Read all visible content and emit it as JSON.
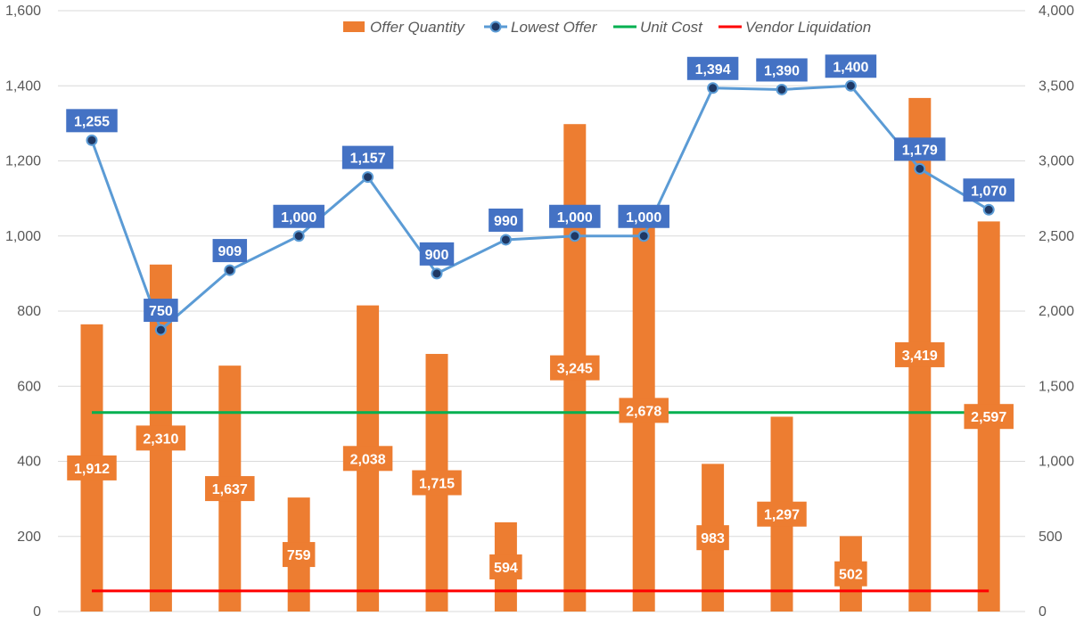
{
  "chart_data": {
    "type": "bar",
    "categories": [
      "",
      "",
      "",
      "",
      "",
      "",
      "",
      "",
      "",
      "",
      "",
      "",
      "",
      ""
    ],
    "title": "",
    "xlabel": "",
    "ylabel": "",
    "ylim": [
      0,
      1600
    ],
    "y2lim": [
      0,
      4000
    ],
    "y_ticks": [
      "0",
      "200",
      "400",
      "600",
      "800",
      "1,000",
      "1,200",
      "1,400",
      "1,600"
    ],
    "y2_ticks": [
      "0",
      "500",
      "1,000",
      "1,500",
      "2,000",
      "2,500",
      "3,000",
      "3,500",
      "4,000"
    ],
    "grid": true,
    "legend_position": "top",
    "series": [
      {
        "name": "Offer Quantity",
        "type": "bar",
        "axis": "right",
        "color": "#ED7D31",
        "values": [
          1912,
          2310,
          1637,
          759,
          2038,
          1715,
          594,
          3245,
          2678,
          983,
          1297,
          502,
          3419,
          2597
        ],
        "labels": [
          "1,912",
          "2,310",
          "1,637",
          "759",
          "2,038",
          "1,715",
          "594",
          "3,245",
          "2,678",
          "983",
          "1,297",
          "502",
          "3,419",
          "2,597"
        ]
      },
      {
        "name": "Lowest Offer",
        "type": "line",
        "axis": "left",
        "color": "#5B9BD5",
        "marker_color": "#1F3864",
        "label_bg": "#4472C4",
        "values": [
          1255,
          750,
          909,
          1000,
          1157,
          900,
          990,
          1000,
          1000,
          1394,
          1390,
          1400,
          1179,
          1070
        ],
        "labels": [
          "1,255",
          "750",
          "909",
          "1,000",
          "1,157",
          "900",
          "990",
          "1,000",
          "1,000",
          "1,394",
          "1,390",
          "1,400",
          "1,179",
          "1,070"
        ]
      },
      {
        "name": "Unit Cost",
        "type": "line",
        "axis": "left",
        "color": "#00B050",
        "values": [
          530,
          530,
          530,
          530,
          530,
          530,
          530,
          530,
          530,
          530,
          530,
          530,
          530,
          530
        ]
      },
      {
        "name": "Vendor Liquidation",
        "type": "line",
        "axis": "left",
        "color": "#FF0000",
        "values": [
          55,
          55,
          55,
          55,
          55,
          55,
          55,
          55,
          55,
          55,
          55,
          55,
          55,
          55
        ]
      }
    ]
  }
}
